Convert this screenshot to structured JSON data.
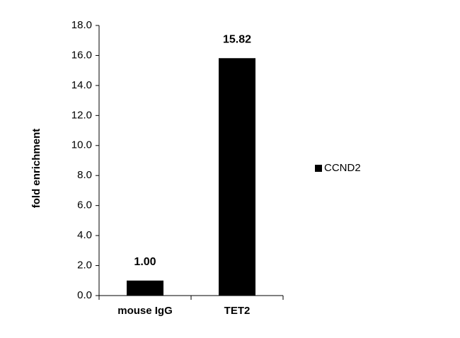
{
  "chart_data": {
    "type": "bar",
    "y_label": "fold enrichment",
    "categories": [
      "mouse IgG",
      "TET2"
    ],
    "series": [
      {
        "name": "CCND2",
        "color": "#000000",
        "values": [
          1.0,
          15.82
        ],
        "value_labels": [
          "1.00",
          "15.82"
        ]
      }
    ],
    "ylim": [
      0,
      18
    ],
    "yticks": [
      {
        "value": 0,
        "label": "0.0"
      },
      {
        "value": 2,
        "label": "2.0"
      },
      {
        "value": 4,
        "label": "4.0"
      },
      {
        "value": 6,
        "label": "6.0"
      },
      {
        "value": 8,
        "label": "8.0"
      },
      {
        "value": 10,
        "label": "10.0"
      },
      {
        "value": 12,
        "label": "12.0"
      },
      {
        "value": 14,
        "label": "14.0"
      },
      {
        "value": 16,
        "label": "16.0"
      },
      {
        "value": 18,
        "label": "18.0"
      }
    ],
    "grid": false,
    "legend": "right"
  }
}
